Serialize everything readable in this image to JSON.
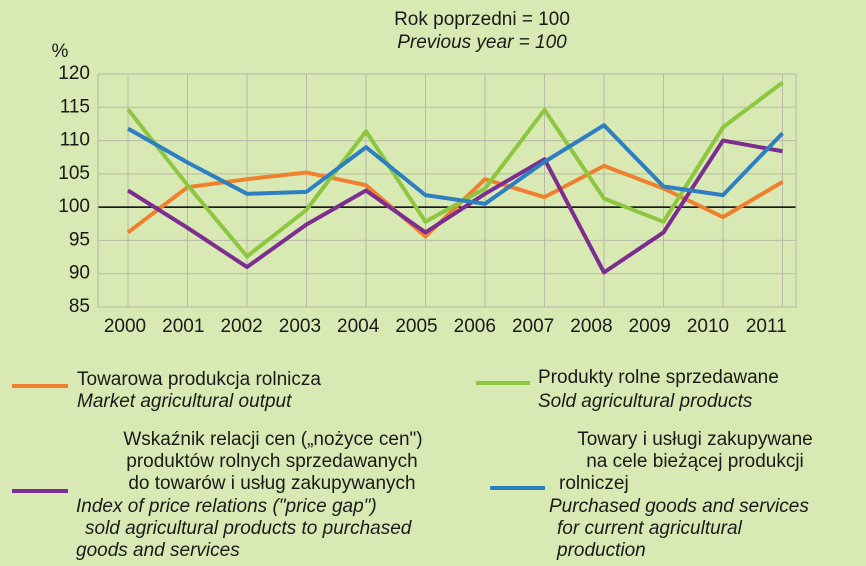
{
  "chart_data": {
    "type": "line",
    "title": "Rok poprzedni = 100",
    "subtitle": "Previous year = 100",
    "y_label": "%",
    "categories": [
      "2000",
      "2001",
      "2002",
      "2003",
      "2004",
      "2005",
      "2006",
      "2007",
      "2008",
      "2009",
      "2010",
      "2011"
    ],
    "ylim": [
      85,
      120
    ],
    "yticks": [
      85,
      90,
      95,
      100,
      105,
      110,
      115,
      120
    ],
    "grid": true,
    "series": [
      {
        "name": [
          "Towarowa produkcja rolnicza"
        ],
        "name_en": [
          "Market agricultural output"
        ],
        "color": "#f07f2e",
        "values": [
          96.2,
          103,
          104.2,
          105.2,
          103.3,
          95.6,
          104.2,
          101.5,
          106.2,
          102.8,
          98.5,
          103.8
        ]
      },
      {
        "name": [
          "Produkty rolne sprzedawane"
        ],
        "name_en": [
          "Sold agricultural products"
        ],
        "color": "#8dc63f",
        "values": [
          114.7,
          103.3,
          92.6,
          99.6,
          111.4,
          97.8,
          102.8,
          114.6,
          101.3,
          97.8,
          112,
          118.7
        ]
      },
      {
        "name": [
          "Wskaźnik relacji cen („nożyce cen\")",
          "produktów rolnych sprzedawanych",
          "do towarów i usług zakupywanych"
        ],
        "name_en": [
          "Index of price relations (\"price gap\")",
          "sold agricultural  products to purchased",
          "goods and services"
        ],
        "color": "#7b2e8f",
        "values": [
          102.5,
          96.9,
          91,
          97.4,
          102.5,
          96.2,
          102,
          107.2,
          90.2,
          96.2,
          110,
          108.4
        ]
      },
      {
        "name": [
          "Towary i usługi zakupywane",
          "na cele bieżącej produkcji",
          "rolniczej"
        ],
        "name_en": [
          "Purchased goods and services",
          "for current agricultural",
          "production"
        ],
        "color": "#2e7fc1",
        "values": [
          111.8,
          106.7,
          102,
          102.3,
          109,
          101.8,
          100.5,
          106.8,
          112.3,
          103.1,
          101.8,
          111.1
        ]
      }
    ]
  }
}
